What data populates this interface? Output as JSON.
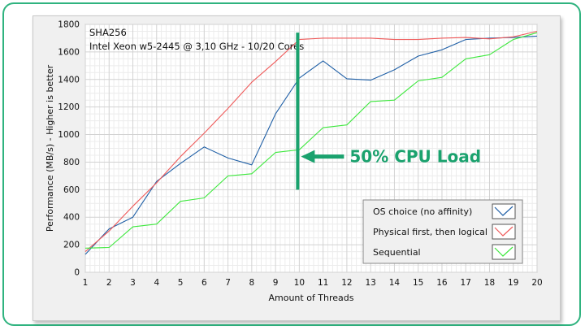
{
  "chart_data": {
    "type": "line",
    "title": "SHA256",
    "subtitle": "Intel Xeon w5-2445 @ 3,10 GHz - 10/20 Cores",
    "xlabel": "Amount of Threads",
    "ylabel": "Performance (MB/s) - Higher is better",
    "x": [
      1,
      2,
      3,
      4,
      5,
      6,
      7,
      8,
      9,
      10,
      11,
      12,
      13,
      14,
      15,
      16,
      17,
      18,
      19,
      20
    ],
    "xlim": [
      1,
      20
    ],
    "ylim": [
      0,
      1800
    ],
    "yticks": [
      0,
      200,
      400,
      600,
      800,
      1000,
      1200,
      1400,
      1600,
      1800
    ],
    "grid": true,
    "legend_position": "bottom-right",
    "series": [
      {
        "name": "OS choice (no affinity)",
        "color": "#1f5fa6",
        "values": [
          130,
          315,
          400,
          660,
          790,
          910,
          830,
          780,
          1150,
          1410,
          1535,
          1405,
          1395,
          1470,
          1570,
          1615,
          1690,
          1700,
          1705,
          1715
        ]
      },
      {
        "name": "Physical first, then logical",
        "color": "#ef5b5b",
        "values": [
          150,
          300,
          480,
          650,
          840,
          1010,
          1190,
          1380,
          1530,
          1690,
          1700,
          1700,
          1700,
          1690,
          1690,
          1700,
          1705,
          1695,
          1710,
          1750
        ]
      },
      {
        "name": "Sequential",
        "color": "#3ee83e",
        "values": [
          175,
          180,
          330,
          350,
          515,
          540,
          700,
          715,
          870,
          890,
          1050,
          1070,
          1240,
          1250,
          1390,
          1415,
          1550,
          1580,
          1690,
          1740
        ]
      }
    ],
    "annotation": {
      "text": "50% CPU Load",
      "color": "#1aa26e",
      "marker_x": 10,
      "marker_y_range": [
        600,
        1740
      ]
    }
  }
}
